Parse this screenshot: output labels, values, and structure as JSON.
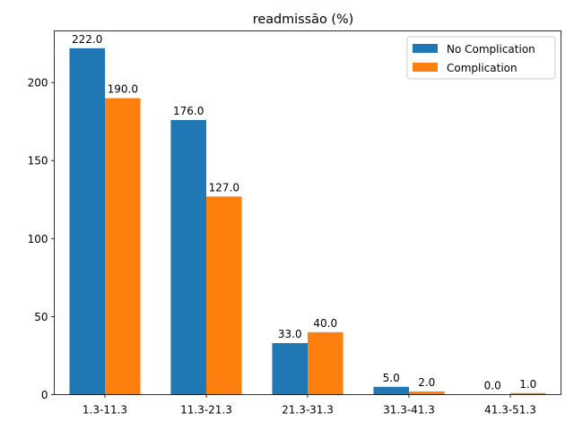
{
  "chart_data": {
    "type": "bar",
    "title": "readmissão (%)",
    "xlabel": "",
    "ylabel": "",
    "categories": [
      "1.3-11.3",
      "11.3-21.3",
      "21.3-31.3",
      "31.3-41.3",
      "41.3-51.3"
    ],
    "series": [
      {
        "name": "No Complication",
        "values": [
          222.0,
          176.0,
          33.0,
          5.0,
          0.0
        ],
        "color": "#1f77b4"
      },
      {
        "name": "Complication",
        "values": [
          190.0,
          127.0,
          40.0,
          2.0,
          1.0
        ],
        "color": "#ff7f0e"
      }
    ],
    "ylim": [
      0,
      233.1
    ],
    "yticks": [
      0,
      50,
      100,
      150,
      200
    ],
    "legend": "top-right",
    "grid": false
  }
}
